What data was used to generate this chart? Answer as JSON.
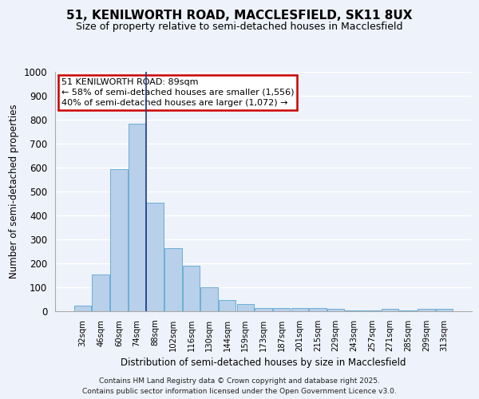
{
  "title_line1": "51, KENILWORTH ROAD, MACCLESFIELD, SK11 8UX",
  "title_line2": "Size of property relative to semi-detached houses in Macclesfield",
  "xlabel": "Distribution of semi-detached houses by size in Macclesfield",
  "ylabel": "Number of semi-detached properties",
  "categories": [
    "32sqm",
    "46sqm",
    "60sqm",
    "74sqm",
    "88sqm",
    "102sqm",
    "116sqm",
    "130sqm",
    "144sqm",
    "159sqm",
    "173sqm",
    "187sqm",
    "201sqm",
    "215sqm",
    "229sqm",
    "243sqm",
    "257sqm",
    "271sqm",
    "285sqm",
    "299sqm",
    "313sqm"
  ],
  "values": [
    25,
    155,
    595,
    785,
    455,
    265,
    190,
    100,
    47,
    30,
    15,
    13,
    13,
    12,
    10,
    5,
    3,
    10,
    5,
    10,
    10
  ],
  "bar_color": "#b8d0ea",
  "bar_edge_color": "#6baed6",
  "vline_x": 3.5,
  "vline_color": "#1a3a8a",
  "annotation_title": "51 KENILWORTH ROAD: 89sqm",
  "annotation_line1": "← 58% of semi-detached houses are smaller (1,556)",
  "annotation_line2": "40% of semi-detached houses are larger (1,072) →",
  "annotation_box_color": "#ffffff",
  "annotation_box_edge": "#cc0000",
  "ylim_max": 1000,
  "yticks": [
    0,
    100,
    200,
    300,
    400,
    500,
    600,
    700,
    800,
    900,
    1000
  ],
  "footer_line1": "Contains HM Land Registry data © Crown copyright and database right 2025.",
  "footer_line2": "Contains public sector information licensed under the Open Government Licence v3.0.",
  "bg_color": "#eef2fa",
  "grid_color": "#d0daea"
}
